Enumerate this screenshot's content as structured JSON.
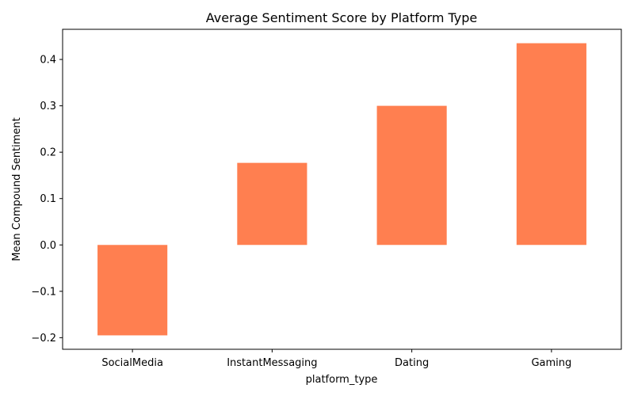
{
  "chart_data": {
    "type": "bar",
    "title": "Average Sentiment Score by Platform Type",
    "xlabel": "platform_type",
    "ylabel": "Mean Compound Sentiment",
    "categories": [
      "SocialMedia",
      "InstantMessaging",
      "Dating",
      "Gaming"
    ],
    "values": [
      -0.195,
      0.177,
      0.3,
      0.435
    ],
    "ylim": [
      -0.225,
      0.465
    ],
    "yticks": [
      -0.2,
      -0.1,
      0.0,
      0.1,
      0.2,
      0.3,
      0.4
    ],
    "ytick_labels": [
      "−0.2",
      "−0.1",
      "0.0",
      "0.1",
      "0.2",
      "0.3",
      "0.4"
    ],
    "bar_color": "#ff7f50",
    "grid": false,
    "legend": "none"
  }
}
